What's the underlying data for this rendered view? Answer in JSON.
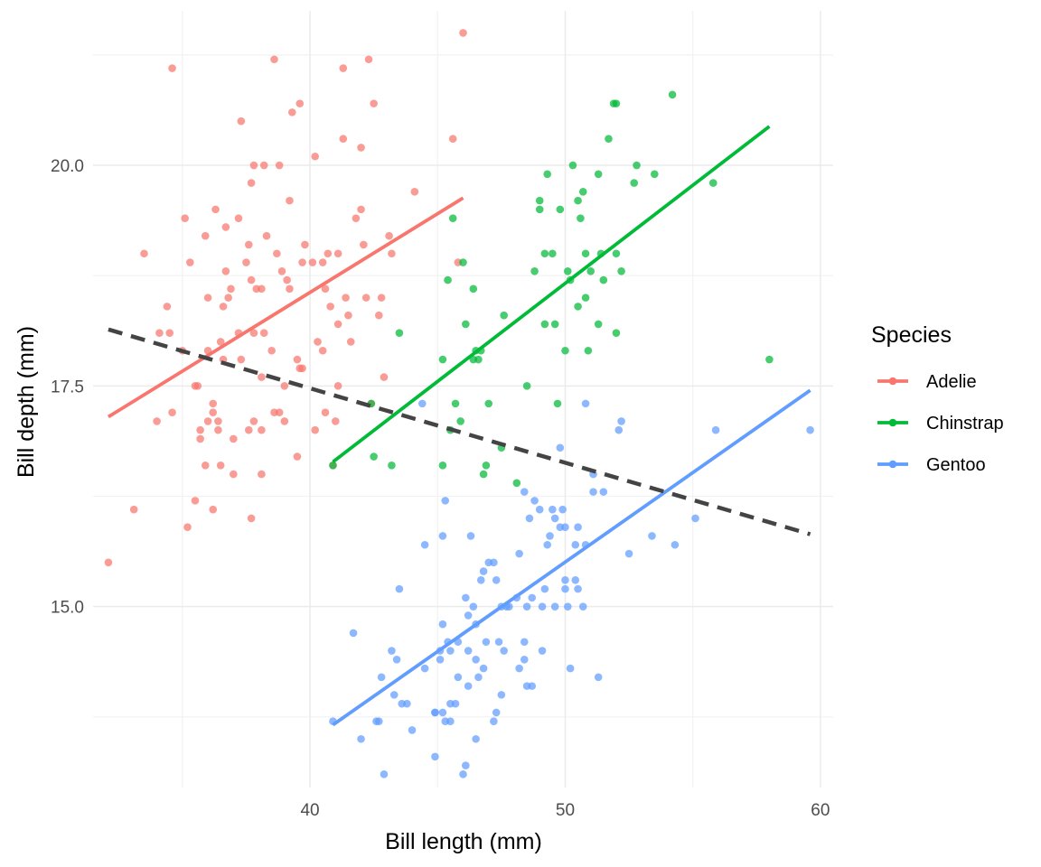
{
  "chart_data": {
    "type": "scatter",
    "xlabel": "Bill length (mm)",
    "ylabel": "Bill depth (mm)",
    "xlim": [
      31.5,
      60.5
    ],
    "ylim": [
      12.95,
      21.75
    ],
    "x_ticks": [
      40,
      50,
      60
    ],
    "x_tick_labels": [
      "40",
      "50",
      "60"
    ],
    "y_ticks": [
      15.0,
      17.5,
      20.0
    ],
    "y_tick_labels": [
      "15.0",
      "17.5",
      "20.0"
    ],
    "x_minor_ticks": [
      35,
      45,
      55
    ],
    "y_minor_ticks": [
      13.75,
      16.25,
      18.75,
      21.25
    ],
    "grid": true,
    "legend": {
      "title": "Species",
      "position": "right"
    },
    "series": [
      {
        "name": "Adelie",
        "color": "#F8766D",
        "points": [
          [
            32.1,
            15.5
          ],
          [
            33.1,
            16.1
          ],
          [
            33.5,
            19.0
          ],
          [
            34.0,
            17.1
          ],
          [
            34.1,
            18.1
          ],
          [
            34.4,
            18.4
          ],
          [
            34.5,
            18.1
          ],
          [
            34.6,
            21.1
          ],
          [
            34.6,
            17.2
          ],
          [
            35.0,
            17.9
          ],
          [
            35.1,
            19.4
          ],
          [
            35.2,
            15.9
          ],
          [
            35.3,
            18.9
          ],
          [
            35.5,
            16.2
          ],
          [
            35.5,
            17.5
          ],
          [
            35.6,
            17.5
          ],
          [
            35.7,
            16.9
          ],
          [
            35.7,
            17.0
          ],
          [
            35.9,
            16.6
          ],
          [
            35.9,
            19.2
          ],
          [
            36.0,
            17.1
          ],
          [
            36.0,
            17.9
          ],
          [
            36.0,
            18.5
          ],
          [
            36.2,
            16.1
          ],
          [
            36.2,
            17.3
          ],
          [
            36.2,
            17.2
          ],
          [
            36.3,
            19.5
          ],
          [
            36.4,
            17.0
          ],
          [
            36.4,
            17.1
          ],
          [
            36.5,
            16.6
          ],
          [
            36.5,
            18.0
          ],
          [
            36.6,
            17.8
          ],
          [
            36.6,
            18.4
          ],
          [
            36.7,
            18.8
          ],
          [
            36.7,
            19.3
          ],
          [
            36.8,
            18.5
          ],
          [
            36.9,
            18.6
          ],
          [
            37.0,
            16.9
          ],
          [
            37.0,
            16.5
          ],
          [
            37.2,
            18.1
          ],
          [
            37.2,
            19.4
          ],
          [
            37.3,
            17.8
          ],
          [
            37.3,
            20.5
          ],
          [
            37.5,
            18.9
          ],
          [
            37.6,
            19.1
          ],
          [
            37.6,
            17.0
          ],
          [
            37.7,
            16.0
          ],
          [
            37.7,
            18.7
          ],
          [
            37.7,
            19.8
          ],
          [
            37.8,
            17.1
          ],
          [
            37.8,
            18.1
          ],
          [
            37.8,
            20.0
          ],
          [
            37.9,
            18.6
          ],
          [
            38.1,
            17.0
          ],
          [
            38.1,
            18.6
          ],
          [
            38.1,
            17.6
          ],
          [
            38.1,
            16.5
          ],
          [
            38.2,
            18.1
          ],
          [
            38.2,
            20.0
          ],
          [
            38.3,
            19.2
          ],
          [
            38.5,
            17.9
          ],
          [
            38.6,
            21.2
          ],
          [
            38.6,
            17.2
          ],
          [
            38.7,
            19.0
          ],
          [
            38.8,
            17.2
          ],
          [
            38.8,
            20.0
          ],
          [
            38.9,
            18.8
          ],
          [
            39.0,
            17.1
          ],
          [
            39.0,
            17.5
          ],
          [
            39.1,
            18.7
          ],
          [
            39.2,
            19.6
          ],
          [
            39.2,
            18.6
          ],
          [
            39.3,
            20.6
          ],
          [
            39.5,
            16.7
          ],
          [
            39.5,
            17.8
          ],
          [
            39.6,
            17.7
          ],
          [
            39.6,
            20.7
          ],
          [
            39.7,
            17.7
          ],
          [
            39.7,
            18.9
          ],
          [
            39.8,
            19.1
          ],
          [
            40.1,
            18.9
          ],
          [
            40.2,
            17.0
          ],
          [
            40.2,
            20.1
          ],
          [
            40.3,
            18.0
          ],
          [
            40.5,
            17.9
          ],
          [
            40.5,
            18.9
          ],
          [
            40.6,
            18.6
          ],
          [
            40.6,
            17.2
          ],
          [
            40.7,
            19.0
          ],
          [
            40.8,
            18.4
          ],
          [
            40.9,
            16.6
          ],
          [
            41.0,
            17.1
          ],
          [
            41.1,
            17.5
          ],
          [
            41.1,
            18.2
          ],
          [
            41.1,
            19.0
          ],
          [
            41.3,
            21.1
          ],
          [
            41.3,
            20.3
          ],
          [
            41.4,
            18.5
          ],
          [
            41.5,
            18.3
          ],
          [
            41.6,
            18.0
          ],
          [
            41.8,
            19.4
          ],
          [
            42.0,
            20.2
          ],
          [
            42.0,
            19.5
          ],
          [
            42.1,
            19.1
          ],
          [
            42.2,
            18.5
          ],
          [
            42.3,
            21.2
          ],
          [
            42.4,
            17.3
          ],
          [
            42.5,
            20.7
          ],
          [
            42.7,
            18.3
          ],
          [
            42.8,
            18.5
          ],
          [
            42.9,
            17.6
          ],
          [
            43.1,
            19.2
          ],
          [
            43.2,
            19.0
          ],
          [
            44.1,
            19.7
          ],
          [
            45.6,
            20.3
          ],
          [
            45.8,
            18.9
          ],
          [
            46.0,
            21.5
          ]
        ]
      },
      {
        "name": "Chinstrap",
        "color": "#00BA38",
        "points": [
          [
            40.9,
            16.6
          ],
          [
            42.4,
            17.3
          ],
          [
            42.5,
            16.7
          ],
          [
            43.2,
            16.6
          ],
          [
            43.5,
            18.1
          ],
          [
            45.2,
            17.8
          ],
          [
            45.2,
            16.6
          ],
          [
            45.4,
            18.7
          ],
          [
            45.5,
            17.0
          ],
          [
            45.6,
            19.4
          ],
          [
            45.7,
            17.3
          ],
          [
            45.9,
            17.1
          ],
          [
            46.0,
            18.9
          ],
          [
            46.1,
            18.2
          ],
          [
            46.4,
            17.8
          ],
          [
            46.4,
            18.6
          ],
          [
            46.5,
            17.9
          ],
          [
            46.6,
            17.8
          ],
          [
            46.7,
            17.9
          ],
          [
            46.8,
            16.5
          ],
          [
            46.9,
            16.6
          ],
          [
            47.0,
            17.3
          ],
          [
            47.5,
            16.8
          ],
          [
            47.6,
            18.3
          ],
          [
            48.1,
            16.4
          ],
          [
            48.5,
            17.5
          ],
          [
            49.0,
            19.5
          ],
          [
            49.0,
            19.6
          ],
          [
            49.2,
            18.2
          ],
          [
            49.3,
            19.9
          ],
          [
            49.5,
            19.0
          ],
          [
            49.6,
            18.2
          ],
          [
            49.7,
            17.3
          ],
          [
            49.8,
            19.5
          ],
          [
            50.0,
            17.9
          ],
          [
            50.1,
            18.8
          ],
          [
            50.2,
            18.7
          ],
          [
            50.3,
            20.0
          ],
          [
            50.5,
            19.6
          ],
          [
            50.5,
            18.4
          ],
          [
            50.6,
            19.4
          ],
          [
            50.7,
            19.7
          ],
          [
            50.8,
            18.5
          ],
          [
            50.8,
            19.0
          ],
          [
            50.9,
            17.9
          ],
          [
            51.0,
            18.8
          ],
          [
            51.3,
            18.2
          ],
          [
            51.3,
            19.9
          ],
          [
            51.4,
            19.0
          ],
          [
            51.5,
            18.7
          ],
          [
            51.7,
            20.3
          ],
          [
            52.0,
            18.1
          ],
          [
            52.0,
            19.0
          ],
          [
            52.2,
            18.8
          ],
          [
            52.7,
            19.8
          ],
          [
            52.8,
            20.0
          ],
          [
            53.5,
            19.9
          ],
          [
            54.2,
            20.8
          ],
          [
            55.8,
            19.8
          ],
          [
            58.0,
            17.8
          ],
          [
            51.9,
            20.7
          ],
          [
            52.0,
            20.7
          ],
          [
            48.8,
            18.8
          ],
          [
            49.2,
            19.0
          ]
        ]
      },
      {
        "name": "Gentoo",
        "color": "#619CFF",
        "points": [
          [
            40.9,
            13.7
          ],
          [
            41.7,
            14.7
          ],
          [
            42.0,
            13.5
          ],
          [
            42.6,
            13.7
          ],
          [
            42.7,
            13.7
          ],
          [
            42.8,
            14.2
          ],
          [
            42.9,
            13.1
          ],
          [
            43.2,
            14.5
          ],
          [
            43.3,
            14.0
          ],
          [
            43.4,
            14.4
          ],
          [
            43.5,
            15.2
          ],
          [
            43.6,
            13.9
          ],
          [
            43.8,
            13.9
          ],
          [
            44.0,
            13.6
          ],
          [
            44.4,
            17.3
          ],
          [
            44.5,
            14.3
          ],
          [
            44.5,
            15.7
          ],
          [
            44.9,
            13.8
          ],
          [
            44.9,
            13.3
          ],
          [
            45.1,
            14.5
          ],
          [
            45.1,
            14.4
          ],
          [
            45.2,
            13.8
          ],
          [
            45.2,
            14.8
          ],
          [
            45.2,
            15.8
          ],
          [
            45.3,
            13.7
          ],
          [
            45.3,
            16.2
          ],
          [
            45.4,
            14.6
          ],
          [
            45.5,
            13.7
          ],
          [
            45.5,
            13.9
          ],
          [
            45.5,
            14.5
          ],
          [
            45.7,
            13.9
          ],
          [
            45.8,
            14.2
          ],
          [
            45.8,
            14.6
          ],
          [
            46.1,
            13.2
          ],
          [
            46.1,
            15.1
          ],
          [
            46.2,
            14.1
          ],
          [
            46.2,
            14.5
          ],
          [
            46.2,
            14.9
          ],
          [
            46.3,
            15.8
          ],
          [
            46.4,
            15.0
          ],
          [
            46.5,
            13.5
          ],
          [
            46.5,
            14.4
          ],
          [
            46.5,
            14.8
          ],
          [
            46.6,
            14.2
          ],
          [
            46.7,
            15.3
          ],
          [
            46.8,
            14.3
          ],
          [
            46.8,
            15.4
          ],
          [
            46.9,
            14.6
          ],
          [
            47.0,
            15.5
          ],
          [
            47.2,
            13.7
          ],
          [
            47.2,
            15.5
          ],
          [
            47.3,
            15.3
          ],
          [
            47.4,
            14.6
          ],
          [
            47.5,
            14.0
          ],
          [
            47.5,
            15.0
          ],
          [
            47.6,
            14.5
          ],
          [
            47.7,
            15.0
          ],
          [
            47.8,
            15.0
          ],
          [
            48.1,
            15.1
          ],
          [
            48.2,
            14.3
          ],
          [
            48.2,
            15.6
          ],
          [
            48.4,
            14.4
          ],
          [
            48.4,
            14.6
          ],
          [
            48.4,
            16.3
          ],
          [
            48.5,
            14.1
          ],
          [
            48.5,
            15.0
          ],
          [
            48.6,
            16.0
          ],
          [
            48.7,
            14.1
          ],
          [
            48.7,
            15.1
          ],
          [
            48.8,
            16.2
          ],
          [
            49.0,
            16.1
          ],
          [
            49.1,
            14.5
          ],
          [
            49.1,
            15.0
          ],
          [
            49.2,
            15.2
          ],
          [
            49.3,
            15.7
          ],
          [
            49.4,
            15.8
          ],
          [
            49.5,
            16.1
          ],
          [
            49.6,
            15.0
          ],
          [
            49.6,
            16.0
          ],
          [
            49.8,
            15.9
          ],
          [
            49.9,
            16.1
          ],
          [
            50.0,
            15.2
          ],
          [
            50.0,
            15.3
          ],
          [
            50.0,
            15.9
          ],
          [
            50.1,
            15.0
          ],
          [
            50.2,
            14.3
          ],
          [
            50.4,
            15.3
          ],
          [
            50.4,
            15.7
          ],
          [
            50.5,
            15.2
          ],
          [
            50.5,
            15.9
          ],
          [
            50.7,
            15.0
          ],
          [
            50.8,
            15.7
          ],
          [
            50.8,
            17.3
          ],
          [
            51.1,
            16.3
          ],
          [
            51.1,
            16.5
          ],
          [
            51.3,
            14.2
          ],
          [
            51.5,
            16.3
          ],
          [
            52.1,
            17.0
          ],
          [
            52.2,
            17.1
          ],
          [
            52.5,
            15.6
          ],
          [
            53.4,
            15.8
          ],
          [
            54.3,
            15.7
          ],
          [
            55.1,
            16.0
          ],
          [
            55.9,
            17.0
          ],
          [
            59.6,
            17.0
          ],
          [
            49.8,
            16.8
          ],
          [
            47.3,
            13.8
          ],
          [
            44.9,
            13.8
          ],
          [
            46.0,
            13.1
          ]
        ]
      }
    ],
    "fits": [
      {
        "series": "Adelie",
        "x": [
          32.1,
          46.0
        ],
        "y": [
          17.15,
          19.63
        ]
      },
      {
        "series": "Chinstrap",
        "x": [
          40.9,
          58.0
        ],
        "y": [
          16.64,
          20.44
        ]
      },
      {
        "series": "Gentoo",
        "x": [
          40.9,
          59.6
        ],
        "y": [
          13.66,
          17.45
        ]
      },
      {
        "series": "overall",
        "style": "dashed",
        "color": "#444444",
        "x": [
          32.1,
          59.6
        ],
        "y": [
          18.14,
          15.82
        ]
      }
    ]
  }
}
